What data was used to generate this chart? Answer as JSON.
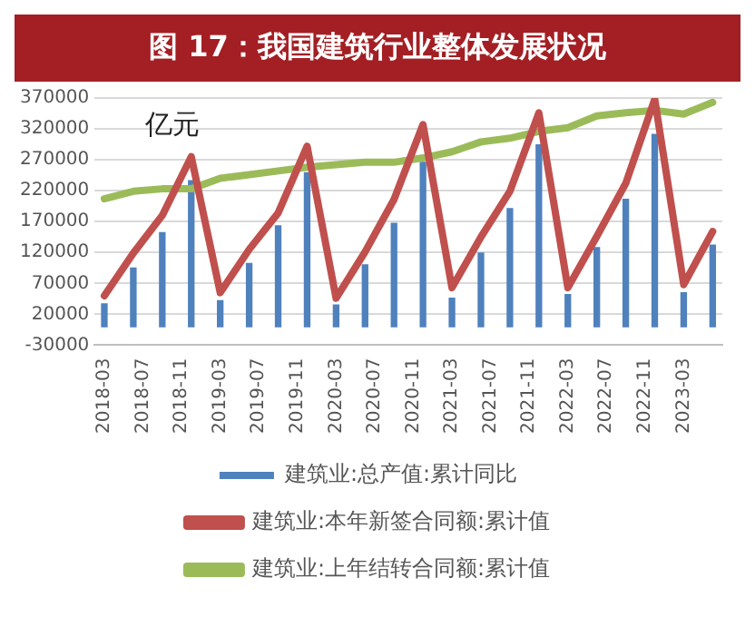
{
  "chart_data": {
    "type": "bar",
    "title": "图 17：我国建筑行业整体发展状况",
    "x": [
      "2018-03",
      "2018-06",
      "2018-09",
      "2018-12",
      "2019-03",
      "2019-06",
      "2019-09",
      "2019-12",
      "2020-03",
      "2020-06",
      "2020-09",
      "2020-12",
      "2021-03",
      "2021-06",
      "2021-09",
      "2021-12",
      "2022-03",
      "2022-06",
      "2022-09",
      "2022-12",
      "2023-03",
      "2023-06"
    ],
    "series": [
      {
        "name": "建筑业:总产值:累计同比",
        "color": "#4f81bd",
        "values": [
          37000,
          95000,
          152000,
          236000,
          42000,
          102000,
          163000,
          249000,
          35000,
          100000,
          167000,
          266000,
          46000,
          119000,
          191000,
          294000,
          52000,
          128000,
          206000,
          311000,
          55000,
          132000
        ]
      },
      {
        "name": "建筑业:本年新签合同额:累计值",
        "type": "line",
        "color": "#c0504d",
        "values": [
          50000,
          119000,
          180000,
          275000,
          55000,
          125000,
          184000,
          292000,
          46000,
          121000,
          206000,
          327000,
          63000,
          145000,
          219000,
          346000,
          63000,
          146000,
          232000,
          368000,
          68000,
          154000
        ]
      },
      {
        "name": "建筑业:上年结转合同额:累计值",
        "type": "line",
        "color": "#9bbb59",
        "values": [
          207000,
          219000,
          223000,
          223000,
          240000,
          246000,
          252000,
          258000,
          262000,
          266000,
          266000,
          273000,
          283000,
          299000,
          305000,
          316000,
          322000,
          341000,
          346000,
          350000,
          344000,
          363000
        ]
      }
    ],
    "xlim": [
      "2018-02",
      "2023-07"
    ],
    "xticks": [
      "2018-03",
      "2018-07",
      "2018-11",
      "2019-03",
      "2019-07",
      "2019-11",
      "2020-03",
      "2020-07",
      "2020-11",
      "2021-03",
      "2021-07",
      "2021-11",
      "2022-03",
      "2022-07",
      "2022-11",
      "2023-03"
    ],
    "ylim": [
      -30000,
      370000
    ],
    "yticks": [
      -30000,
      20000,
      70000,
      120000,
      170000,
      220000,
      270000,
      320000,
      370000
    ],
    "grid": "y",
    "legend": "bottom",
    "marker": "none",
    "line_style": "solid",
    "annotations": [
      "亿元"
    ]
  }
}
